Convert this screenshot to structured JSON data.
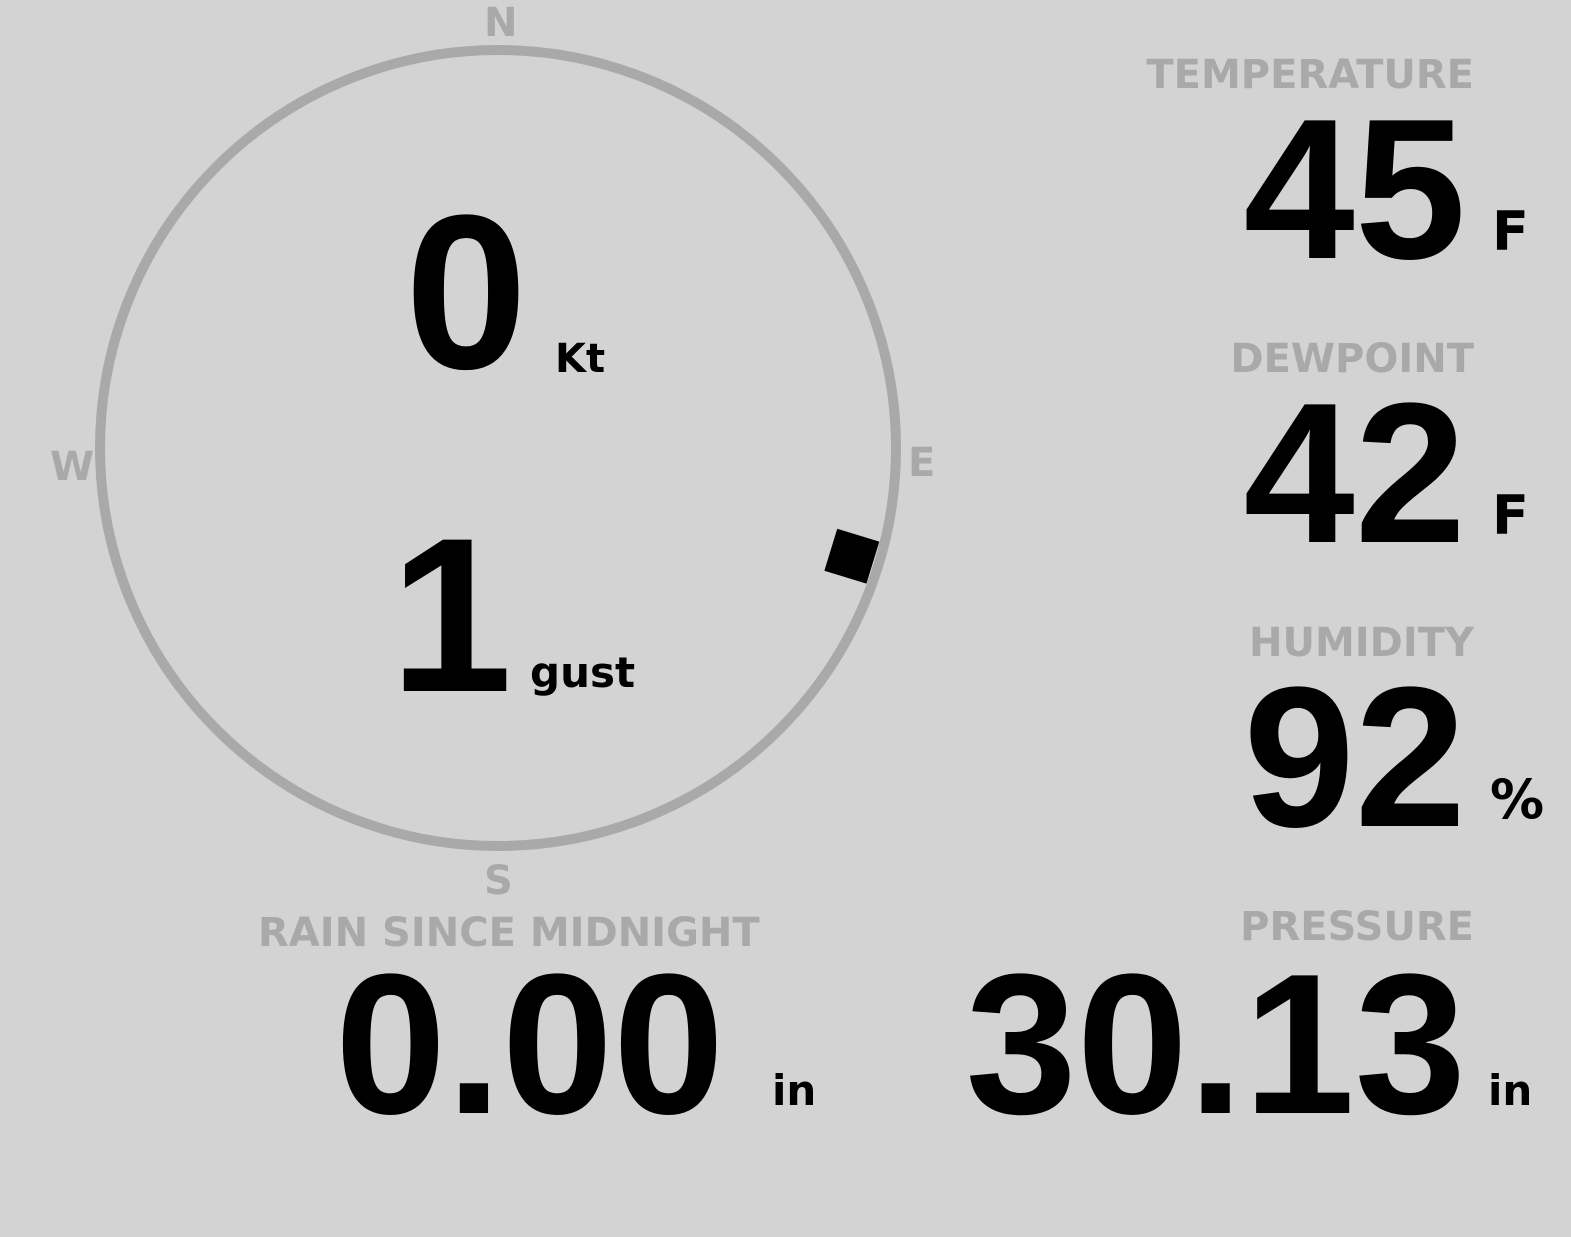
{
  "wind": {
    "speed": "0",
    "speed_unit": "Kt",
    "gust": "1",
    "gust_unit": "gust",
    "direction_degrees": 107,
    "cardinals": {
      "n": "N",
      "e": "E",
      "s": "S",
      "w": "W"
    }
  },
  "temperature": {
    "label": "TEMPERATURE",
    "value": "45",
    "unit": "F"
  },
  "dewpoint": {
    "label": "DEWPOINT",
    "value": "42",
    "unit": "F"
  },
  "humidity": {
    "label": "HUMIDITY",
    "value": "92",
    "unit": "%"
  },
  "rain": {
    "label": "RAIN SINCE MIDNIGHT",
    "value": "0.00",
    "unit": "in"
  },
  "pressure": {
    "label": "PRESSURE",
    "value": "30.13",
    "unit": "in"
  },
  "colors": {
    "background": "#d3d3d3",
    "label": "#a9a9a9",
    "value": "#000000"
  }
}
